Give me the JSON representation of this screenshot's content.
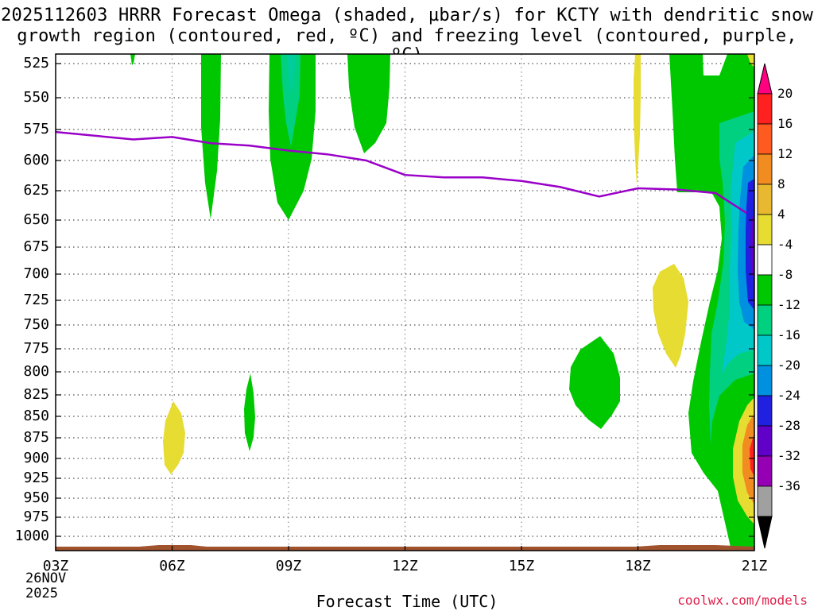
{
  "title_line1": "2025112603 HRRR Forecast Omega (shaded, µbar/s) for KCTY with dendritic snow",
  "title_line2": "growth region (contoured, red, ºC) and freezing level (contoured, purple, ºC)",
  "chart_data": {
    "type": "heatmap",
    "xlabel": "Forecast Time (UTC)",
    "ylabel": "Pressure (hPa)",
    "x_ticks": [
      "03Z",
      "06Z",
      "09Z",
      "12Z",
      "15Z",
      "18Z",
      "21Z"
    ],
    "x_tick_hours": [
      3,
      6,
      9,
      12,
      15,
      18,
      21
    ],
    "date_label": [
      "26NOV",
      "2025"
    ],
    "y_ticks": [
      525,
      550,
      575,
      600,
      625,
      650,
      675,
      700,
      725,
      750,
      775,
      800,
      825,
      850,
      875,
      900,
      925,
      950,
      975,
      1000
    ],
    "x_range": [
      3,
      21
    ],
    "y_range": [
      1020,
      515
    ],
    "grid": true,
    "freezing_level": {
      "color": "#9a00c8",
      "x": [
        3,
        5,
        6,
        7,
        8,
        9,
        10,
        11,
        12,
        13,
        14,
        15,
        16,
        17,
        18,
        19,
        20,
        20.8
      ],
      "pressure": [
        577,
        583,
        581,
        586,
        588,
        592,
        595,
        600,
        612,
        614,
        614,
        617,
        622,
        630,
        623,
        624,
        627,
        644
      ]
    },
    "colorbar": {
      "labels": [
        "20",
        "16",
        "12",
        "8",
        "4",
        "-4",
        "-8",
        "-12",
        "-16",
        "-20",
        "-24",
        "-28",
        "-32",
        "-36"
      ],
      "colors": [
        "#ff0080",
        "#ff2020",
        "#ff5a20",
        "#f08c20",
        "#e8b830",
        "#e6dc32",
        "#ffffff",
        "#00c800",
        "#00d080",
        "#00c8c8",
        "#0090e0",
        "#2020e0",
        "#6000c8",
        "#9600b4",
        "#a0a0a0",
        "#000000"
      ]
    },
    "shading_colors": {
      "green": "#00c800",
      "teal": "#00d080",
      "cyan": "#00c8c8",
      "blue": "#0090e0",
      "deep_blue": "#2020e0",
      "purple": "#6000c8",
      "yellow": "#e6dc32",
      "orange": "#f08c20",
      "red": "#ff2020",
      "terrain": "#a0522d"
    }
  },
  "x_title": "Forecast Time (UTC)",
  "credit": "coolwx.com/models"
}
